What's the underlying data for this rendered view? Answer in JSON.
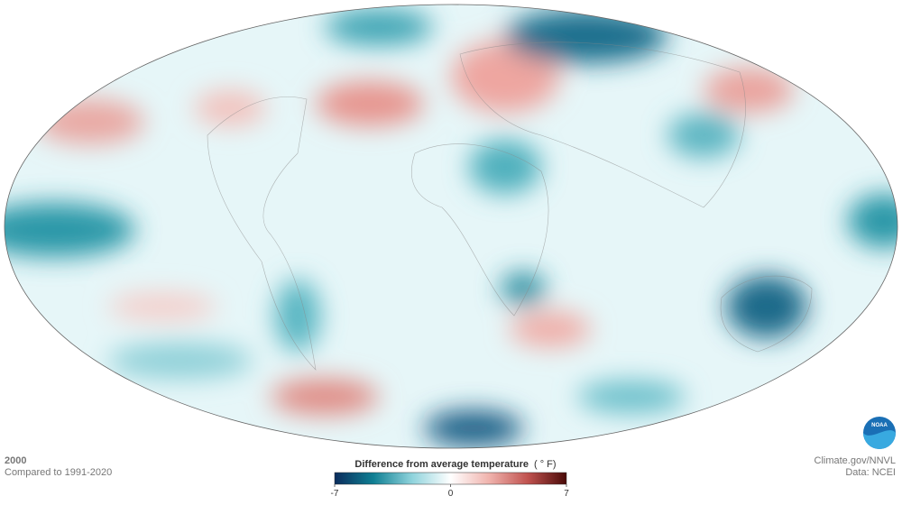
{
  "map": {
    "year": "2000",
    "baseline": "Compared to 1991-2020",
    "legend": {
      "title": "Difference from average temperature",
      "unit": "( ° F)",
      "min": -7,
      "max": 7,
      "ticks": [
        -7,
        0,
        7
      ],
      "colors": [
        "#0b2c5c",
        "#0f7f93",
        "#8fd3dc",
        "#ffffff",
        "#f0b3ad",
        "#c0524f",
        "#4a0a08"
      ]
    },
    "credits": [
      "Climate.gov/NNVL",
      "Data: NCEI"
    ],
    "logo": "NOAA"
  }
}
